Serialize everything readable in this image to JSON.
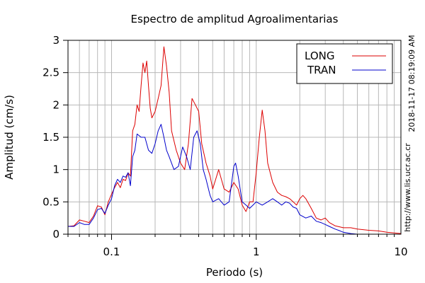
{
  "chart_data": {
    "type": "line",
    "title": "Espectro de amplitud Agroalimentarias",
    "xlabel": "Periodo (s)",
    "ylabel": "Amplitud (cm/s)",
    "x_scale": "log",
    "xlim": [
      0.05,
      10
    ],
    "ylim": [
      0,
      3
    ],
    "x_ticks": [
      {
        "value": 0.1,
        "label": "0.1"
      },
      {
        "value": 1,
        "label": "1"
      },
      {
        "value": 10,
        "label": "10"
      }
    ],
    "y_ticks": [
      {
        "value": 0,
        "label": "0"
      },
      {
        "value": 0.5,
        "label": "0.5"
      },
      {
        "value": 1,
        "label": "1"
      },
      {
        "value": 1.5,
        "label": "1.5"
      },
      {
        "value": 2,
        "label": "2"
      },
      {
        "value": 2.5,
        "label": "2.5"
      },
      {
        "value": 3,
        "label": "3"
      }
    ],
    "grid": true,
    "legend_position": "top-right",
    "side_texts": [
      "2018-11-17 08:19:09 AM",
      "http://www.lis.ucr.ac.cr"
    ],
    "series": [
      {
        "name": "LONG",
        "color": "#dd0000",
        "points": [
          [
            0.05,
            0.12
          ],
          [
            0.055,
            0.13
          ],
          [
            0.06,
            0.22
          ],
          [
            0.065,
            0.2
          ],
          [
            0.07,
            0.18
          ],
          [
            0.075,
            0.28
          ],
          [
            0.08,
            0.44
          ],
          [
            0.085,
            0.42
          ],
          [
            0.09,
            0.3
          ],
          [
            0.095,
            0.5
          ],
          [
            0.1,
            0.62
          ],
          [
            0.105,
            0.72
          ],
          [
            0.11,
            0.8
          ],
          [
            0.115,
            0.72
          ],
          [
            0.12,
            0.85
          ],
          [
            0.125,
            0.83
          ],
          [
            0.13,
            0.95
          ],
          [
            0.135,
            0.9
          ],
          [
            0.14,
            1.6
          ],
          [
            0.145,
            1.7
          ],
          [
            0.15,
            2.0
          ],
          [
            0.155,
            1.9
          ],
          [
            0.16,
            2.3
          ],
          [
            0.165,
            2.65
          ],
          [
            0.17,
            2.5
          ],
          [
            0.175,
            2.68
          ],
          [
            0.18,
            2.3
          ],
          [
            0.185,
            1.95
          ],
          [
            0.19,
            1.8
          ],
          [
            0.2,
            1.9
          ],
          [
            0.21,
            2.1
          ],
          [
            0.22,
            2.3
          ],
          [
            0.23,
            2.9
          ],
          [
            0.24,
            2.6
          ],
          [
            0.25,
            2.2
          ],
          [
            0.26,
            1.6
          ],
          [
            0.28,
            1.3
          ],
          [
            0.3,
            1.1
          ],
          [
            0.32,
            1.0
          ],
          [
            0.34,
            1.4
          ],
          [
            0.36,
            2.1
          ],
          [
            0.38,
            2.0
          ],
          [
            0.4,
            1.9
          ],
          [
            0.42,
            1.4
          ],
          [
            0.45,
            1.1
          ],
          [
            0.48,
            0.9
          ],
          [
            0.5,
            0.7
          ],
          [
            0.55,
            1.0
          ],
          [
            0.6,
            0.7
          ],
          [
            0.65,
            0.65
          ],
          [
            0.7,
            0.8
          ],
          [
            0.75,
            0.7
          ],
          [
            0.8,
            0.45
          ],
          [
            0.85,
            0.35
          ],
          [
            0.9,
            0.5
          ],
          [
            0.95,
            0.5
          ],
          [
            1.0,
            0.95
          ],
          [
            1.05,
            1.5
          ],
          [
            1.1,
            1.92
          ],
          [
            1.15,
            1.6
          ],
          [
            1.2,
            1.1
          ],
          [
            1.3,
            0.8
          ],
          [
            1.4,
            0.65
          ],
          [
            1.5,
            0.6
          ],
          [
            1.6,
            0.58
          ],
          [
            1.7,
            0.55
          ],
          [
            1.8,
            0.5
          ],
          [
            1.9,
            0.45
          ],
          [
            2.0,
            0.55
          ],
          [
            2.1,
            0.6
          ],
          [
            2.2,
            0.55
          ],
          [
            2.4,
            0.4
          ],
          [
            2.6,
            0.25
          ],
          [
            2.8,
            0.22
          ],
          [
            3.0,
            0.25
          ],
          [
            3.2,
            0.18
          ],
          [
            3.5,
            0.13
          ],
          [
            4.0,
            0.1
          ],
          [
            4.5,
            0.1
          ],
          [
            5.0,
            0.08
          ],
          [
            6.0,
            0.06
          ],
          [
            7.0,
            0.05
          ],
          [
            8.0,
            0.03
          ],
          [
            9.0,
            0.02
          ],
          [
            10.0,
            0.01
          ]
        ]
      },
      {
        "name": "TRAN",
        "color": "#0000cc",
        "points": [
          [
            0.05,
            0.12
          ],
          [
            0.055,
            0.12
          ],
          [
            0.06,
            0.18
          ],
          [
            0.065,
            0.15
          ],
          [
            0.07,
            0.15
          ],
          [
            0.075,
            0.25
          ],
          [
            0.08,
            0.38
          ],
          [
            0.085,
            0.4
          ],
          [
            0.09,
            0.32
          ],
          [
            0.095,
            0.45
          ],
          [
            0.1,
            0.55
          ],
          [
            0.105,
            0.75
          ],
          [
            0.11,
            0.85
          ],
          [
            0.115,
            0.8
          ],
          [
            0.12,
            0.9
          ],
          [
            0.125,
            0.88
          ],
          [
            0.13,
            0.95
          ],
          [
            0.135,
            0.75
          ],
          [
            0.14,
            1.2
          ],
          [
            0.145,
            1.3
          ],
          [
            0.15,
            1.55
          ],
          [
            0.16,
            1.5
          ],
          [
            0.17,
            1.5
          ],
          [
            0.18,
            1.3
          ],
          [
            0.19,
            1.25
          ],
          [
            0.2,
            1.4
          ],
          [
            0.21,
            1.6
          ],
          [
            0.22,
            1.7
          ],
          [
            0.23,
            1.5
          ],
          [
            0.24,
            1.3
          ],
          [
            0.25,
            1.2
          ],
          [
            0.27,
            1.0
          ],
          [
            0.29,
            1.05
          ],
          [
            0.31,
            1.35
          ],
          [
            0.33,
            1.2
          ],
          [
            0.35,
            1.0
          ],
          [
            0.37,
            1.5
          ],
          [
            0.39,
            1.6
          ],
          [
            0.41,
            1.4
          ],
          [
            0.43,
            1.0
          ],
          [
            0.45,
            0.85
          ],
          [
            0.48,
            0.6
          ],
          [
            0.5,
            0.5
          ],
          [
            0.55,
            0.55
          ],
          [
            0.6,
            0.45
          ],
          [
            0.65,
            0.5
          ],
          [
            0.7,
            1.05
          ],
          [
            0.72,
            1.1
          ],
          [
            0.75,
            0.9
          ],
          [
            0.8,
            0.5
          ],
          [
            0.85,
            0.45
          ],
          [
            0.9,
            0.4
          ],
          [
            0.95,
            0.45
          ],
          [
            1.0,
            0.5
          ],
          [
            1.1,
            0.45
          ],
          [
            1.2,
            0.5
          ],
          [
            1.3,
            0.55
          ],
          [
            1.4,
            0.5
          ],
          [
            1.5,
            0.45
          ],
          [
            1.6,
            0.5
          ],
          [
            1.7,
            0.48
          ],
          [
            1.8,
            0.42
          ],
          [
            1.9,
            0.4
          ],
          [
            2.0,
            0.3
          ],
          [
            2.2,
            0.25
          ],
          [
            2.4,
            0.28
          ],
          [
            2.6,
            0.2
          ],
          [
            2.8,
            0.18
          ],
          [
            3.0,
            0.15
          ],
          [
            3.2,
            0.12
          ],
          [
            3.5,
            0.08
          ],
          [
            3.8,
            0.05
          ],
          [
            4.0,
            0.03
          ],
          [
            4.5,
            0.01
          ],
          [
            5.0,
            0.0
          ]
        ]
      }
    ]
  }
}
